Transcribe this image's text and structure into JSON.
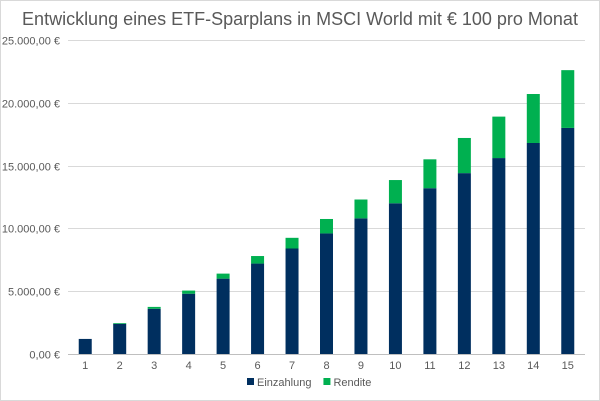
{
  "chart_data": {
    "type": "bar",
    "stacked": true,
    "title": "Entwicklung eines ETF-Sparplans in MSCI World mit € 100 pro Monat",
    "xlabel": "",
    "ylabel": "",
    "categories": [
      "1",
      "2",
      "3",
      "4",
      "5",
      "6",
      "7",
      "8",
      "9",
      "10",
      "11",
      "12",
      "13",
      "14",
      "15"
    ],
    "series": [
      {
        "name": "Einzahlung",
        "color": "#002f5f",
        "values": [
          1200,
          2400,
          3600,
          4800,
          6000,
          7200,
          8400,
          9600,
          10800,
          12000,
          13200,
          14400,
          15600,
          16800,
          18000
        ]
      },
      {
        "name": "Rendite",
        "color": "#00b050",
        "values": [
          0,
          60,
          150,
          250,
          400,
          600,
          850,
          1150,
          1500,
          1850,
          2300,
          2800,
          3300,
          3900,
          4600
        ]
      }
    ],
    "ylim": [
      0,
      25000
    ],
    "yticks": [
      0,
      5000,
      10000,
      15000,
      20000,
      25000
    ],
    "ytick_labels": [
      "0,00 €",
      "5.000,00 €",
      "10.000,00 €",
      "15.000,00 €",
      "20.000,00 €",
      "25.000,00 €"
    ],
    "grid": true,
    "legend_position": "bottom"
  }
}
